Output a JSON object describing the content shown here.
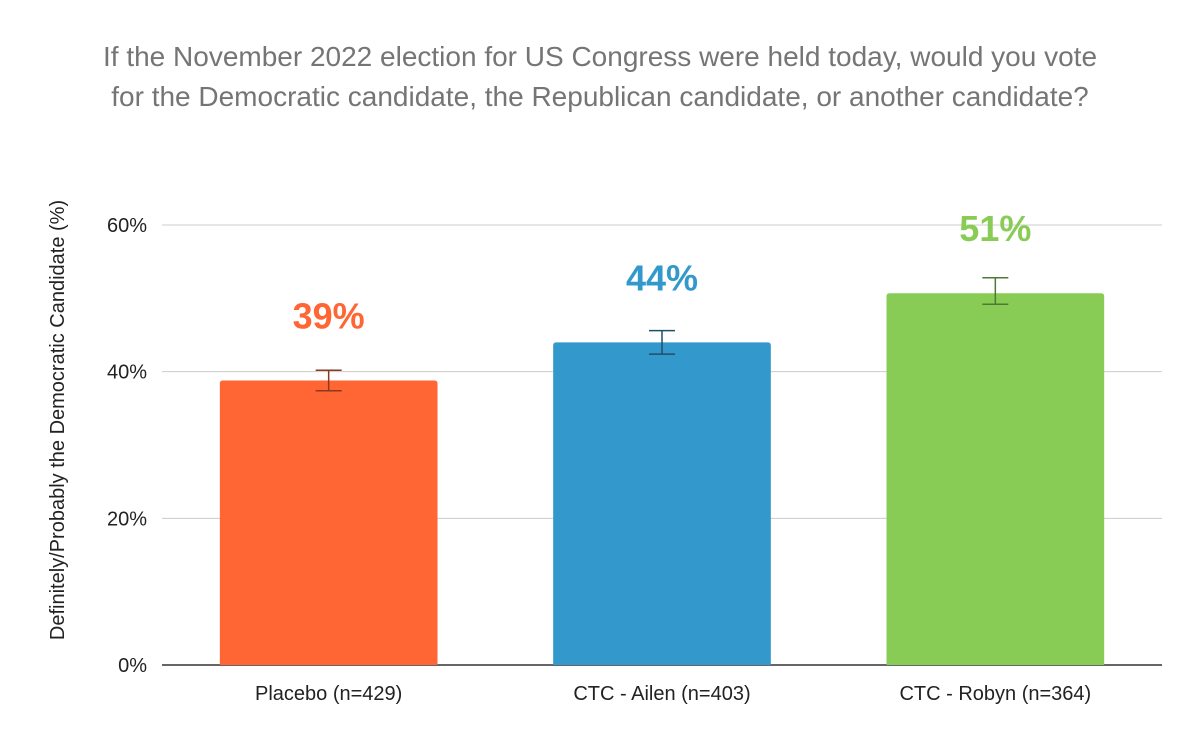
{
  "chart_data": {
    "type": "bar",
    "title_lines": [
      "If the November 2022 election for US Congress were held today, would you vote",
      "for the Democratic candidate, the Republican candidate, or another candidate?"
    ],
    "xlabel": "",
    "ylabel": "Definitely/Probably the Democratic Candidate (%)",
    "ylim": [
      0,
      60
    ],
    "yticks": [
      0,
      20,
      40,
      60
    ],
    "ytick_labels": [
      "0%",
      "20%",
      "40%",
      "60%"
    ],
    "grid": true,
    "legend": "none",
    "categories": [
      "Placebo (n=429)",
      "CTC - Ailen (n=403)",
      "CTC - Robyn (n=364)"
    ],
    "values": [
      38.8,
      44.0,
      50.7
    ],
    "error_low": [
      37.4,
      42.4,
      49.2
    ],
    "error_high": [
      40.2,
      45.6,
      52.8
    ],
    "data_labels": [
      "39%",
      "44%",
      "51%"
    ],
    "colors": [
      "#ff6633",
      "#3399cc",
      "#88cc55"
    ],
    "error_colors": [
      "#8a3a1e",
      "#1f4f66",
      "#4d7a33"
    ]
  }
}
